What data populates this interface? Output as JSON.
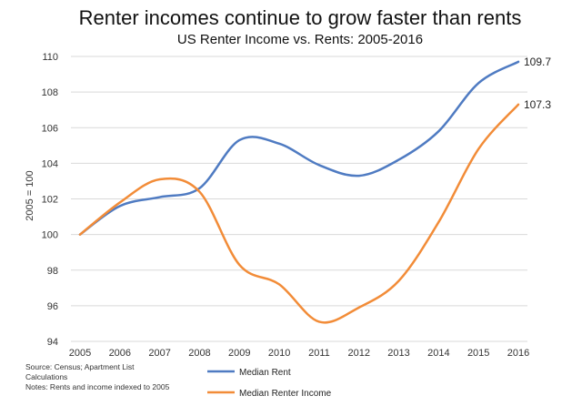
{
  "chart_data": {
    "type": "line",
    "title": "Renter incomes continue to grow faster than rents",
    "subtitle": "US Renter Income vs. Rents: 2005-2016",
    "ylabel": "2005 = 100",
    "xlabel": "",
    "x": [
      2005,
      2006,
      2007,
      2008,
      2009,
      2010,
      2011,
      2012,
      2013,
      2014,
      2015,
      2016
    ],
    "x_tick_labels": [
      "2005",
      "2006",
      "2007",
      "2008",
      "2009",
      "2010",
      "2011",
      "2012",
      "2013",
      "2014",
      "2015",
      "2016"
    ],
    "ylim": [
      94,
      110
    ],
    "y_ticks": [
      94,
      96,
      98,
      100,
      102,
      104,
      106,
      108,
      110
    ],
    "y_tick_labels": [
      "94",
      "96",
      "98",
      "100",
      "102",
      "104",
      "106",
      "108",
      "110"
    ],
    "grid": "horizontal",
    "legend_position": "bottom",
    "series": [
      {
        "name": "Median Rent",
        "color": "#4f7bc2",
        "values": [
          100,
          101.6,
          102.1,
          102.6,
          105.3,
          105.1,
          103.9,
          103.3,
          104.2,
          105.8,
          108.5,
          109.7
        ],
        "end_label": "109.7"
      },
      {
        "name": "Median Renter Income",
        "color": "#f28c38",
        "values": [
          100,
          101.8,
          103.1,
          102.4,
          98.3,
          97.2,
          95.1,
          95.9,
          97.4,
          100.7,
          104.8,
          107.3
        ],
        "end_label": "107.3"
      }
    ]
  },
  "footer": {
    "source_line1": "Source: Census; Apartment List",
    "source_line2": "Calculations",
    "notes": "Notes: Rents and income indexed to 2005"
  }
}
